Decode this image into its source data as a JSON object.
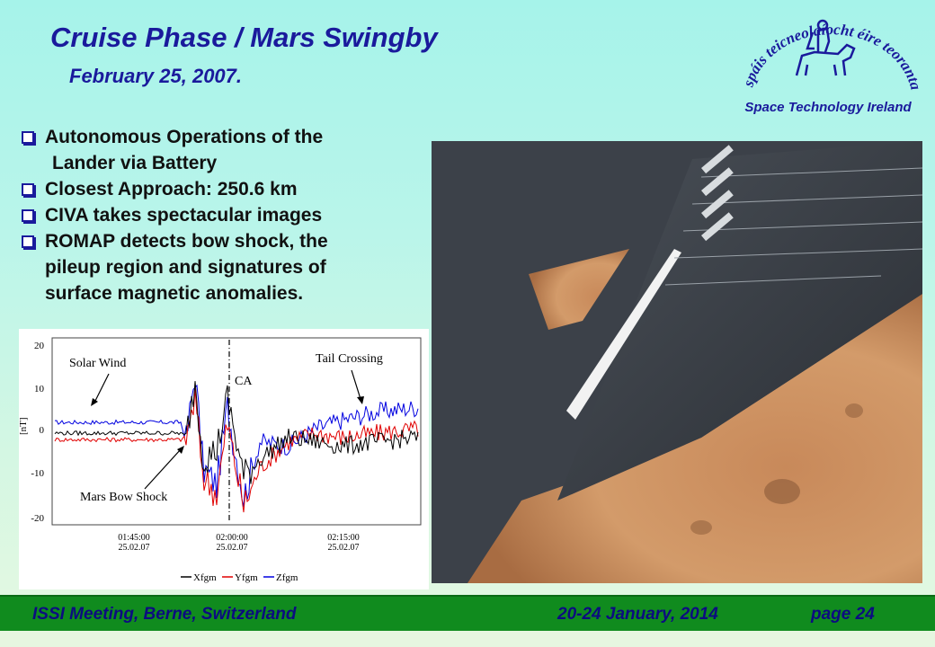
{
  "slide": {
    "title": "Cruise Phase  / Mars Swingby",
    "subtitle": "February 25, 2007."
  },
  "logo": {
    "irish_text": "spáis teicneolaíocht éire teoranta",
    "caption": "Space Technology Ireland"
  },
  "bullets": [
    {
      "line1": "Autonomous Operations of the",
      "line2": "Lander via Battery"
    },
    {
      "line1": "Closest Approach: 250.6 km"
    },
    {
      "line1": "CIVA takes spectacular images"
    },
    {
      "line1": "ROMAP detects bow shock, the",
      "line2": "pileup region and signatures of",
      "line3": "surface magnetic anomalies."
    }
  ],
  "plot": {
    "ylabel": "[nT]",
    "yticks": [
      "20",
      "10",
      "0",
      "-10",
      "-20"
    ],
    "xticks": [
      {
        "time": "01:45:00",
        "date": "25.02.07"
      },
      {
        "time": "02:00:00",
        "date": "25.02.07"
      },
      {
        "time": "02:15:00",
        "date": "25.02.07"
      }
    ],
    "annotations": {
      "solar_wind": "Solar Wind",
      "tail_crossing": "Tail Crossing",
      "bow_shock": "Mars Bow Shock",
      "ca": "CA"
    },
    "legend": [
      "Xfgm",
      "Yfgm",
      "Zfgm"
    ],
    "colors": {
      "x": "#000000",
      "y": "#e00000",
      "z": "#0000e0"
    }
  },
  "footer": {
    "left": "ISSI Meeting, Berne, Switzerland",
    "center": "20-24 January, 2014",
    "page": "page  24"
  },
  "colors": {
    "title": "#1a1a9c",
    "footer_bg": "#108b1e",
    "footer_text": "#0c0c80"
  }
}
